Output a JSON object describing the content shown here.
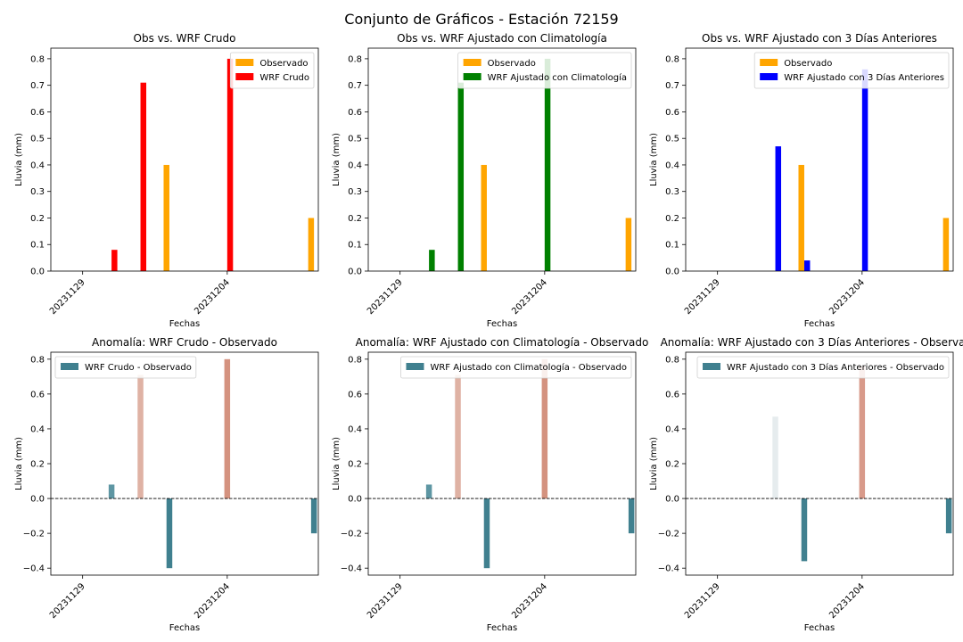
{
  "figure_title": "Conjunto de Gráficos - Estación 72159",
  "chart_data": [
    {
      "type": "bar",
      "title": "Obs vs. WRF Crudo",
      "xlabel": "Fechas",
      "ylabel": "Lluvia (mm)",
      "xticks": [
        "20231129",
        "20231204"
      ],
      "yticks": [
        "0.0",
        "0.1",
        "0.2",
        "0.3",
        "0.4",
        "0.5",
        "0.6",
        "0.7",
        "0.8"
      ],
      "ylim": [
        0,
        0.84
      ],
      "legend_position": "top-right",
      "dates": [
        "20231129",
        "20231130",
        "20231201",
        "20231202",
        "20231203",
        "20231204",
        "20231205",
        "20231206",
        "20231207"
      ],
      "series": [
        {
          "name": "Observado",
          "color": "#ffa500",
          "values": [
            0,
            0,
            0,
            0.4,
            0,
            0,
            0,
            0,
            0.2
          ]
        },
        {
          "name": "WRF Crudo",
          "color": "#ff0000",
          "values": [
            0,
            0.08,
            0.71,
            0,
            0,
            0.8,
            0,
            0,
            0
          ]
        }
      ]
    },
    {
      "type": "bar",
      "title": "Obs vs. WRF Ajustado con Climatología",
      "xlabel": "Fechas",
      "ylabel": "Lluvia (mm)",
      "xticks": [
        "20231129",
        "20231204"
      ],
      "yticks": [
        "0.0",
        "0.1",
        "0.2",
        "0.3",
        "0.4",
        "0.5",
        "0.6",
        "0.7",
        "0.8"
      ],
      "ylim": [
        0,
        0.84
      ],
      "legend_position": "top-right",
      "dates": [
        "20231129",
        "20231130",
        "20231201",
        "20231202",
        "20231203",
        "20231204",
        "20231205",
        "20231206",
        "20231207"
      ],
      "series": [
        {
          "name": "Observado",
          "color": "#ffa500",
          "values": [
            0,
            0,
            0,
            0.4,
            0,
            0,
            0,
            0,
            0.2
          ]
        },
        {
          "name": "WRF Ajustado con Climatología",
          "color": "#008000",
          "values": [
            0,
            0.08,
            0.71,
            0,
            0,
            0.8,
            0,
            0,
            0
          ]
        }
      ]
    },
    {
      "type": "bar",
      "title": "Obs vs. WRF Ajustado con 3 Días Anteriores",
      "xlabel": "Fechas",
      "ylabel": "Lluvia (mm)",
      "xticks": [
        "20231129",
        "20231204"
      ],
      "yticks": [
        "0.0",
        "0.1",
        "0.2",
        "0.3",
        "0.4",
        "0.5",
        "0.6",
        "0.7",
        "0.8"
      ],
      "ylim": [
        0,
        0.84
      ],
      "legend_position": "top-right",
      "dates": [
        "20231129",
        "20231130",
        "20231201",
        "20231202",
        "20231203",
        "20231204",
        "20231205",
        "20231206",
        "20231207"
      ],
      "series": [
        {
          "name": "Observado",
          "color": "#ffa500",
          "values": [
            0,
            0,
            0,
            0.4,
            0,
            0,
            0,
            0,
            0.2
          ]
        },
        {
          "name": "WRF Ajustado con 3 Días Anteriores",
          "color": "#0000ff",
          "values": [
            0,
            0,
            0.47,
            0.04,
            0,
            0.76,
            0,
            0,
            0
          ]
        }
      ]
    },
    {
      "type": "bar",
      "title": "Anomalía: WRF Crudo - Observado",
      "xlabel": "Fechas",
      "ylabel": "Lluvia (mm)",
      "xticks": [
        "20231129",
        "20231204"
      ],
      "yticks": [
        "−0.4",
        "−0.2",
        "0.0",
        "0.2",
        "0.4",
        "0.6",
        "0.8"
      ],
      "ylim": [
        -0.44,
        0.84
      ],
      "zero_line": true,
      "legend_position": "top-left",
      "dates": [
        "20231129",
        "20231130",
        "20231201",
        "20231202",
        "20231203",
        "20231204",
        "20231205",
        "20231206",
        "20231207"
      ],
      "series": [
        {
          "name": "WRF Crudo - Observado",
          "color": "#40808f",
          "values": [
            0,
            0.08,
            0.71,
            -0.4,
            0,
            0.8,
            0,
            0,
            -0.2
          ],
          "bar_colors": [
            "#40808f",
            "#5e96a3",
            "#dfb2a4",
            "#40808f",
            "#40808f",
            "#d4927f",
            "#40808f",
            "#40808f",
            "#40808f"
          ]
        }
      ]
    },
    {
      "type": "bar",
      "title": "Anomalía: WRF Ajustado con Climatología - Observado",
      "xlabel": "Fechas",
      "ylabel": "Lluvia (mm)",
      "xticks": [
        "20231129",
        "20231204"
      ],
      "yticks": [
        "−0.4",
        "−0.2",
        "0.0",
        "0.2",
        "0.4",
        "0.6",
        "0.8"
      ],
      "ylim": [
        -0.44,
        0.84
      ],
      "zero_line": true,
      "legend_position": "top-right",
      "dates": [
        "20231129",
        "20231130",
        "20231201",
        "20231202",
        "20231203",
        "20231204",
        "20231205",
        "20231206",
        "20231207"
      ],
      "series": [
        {
          "name": "WRF Ajustado con Climatología - Observado",
          "color": "#40808f",
          "values": [
            0,
            0.08,
            0.71,
            -0.4,
            0,
            0.8,
            0,
            0,
            -0.2
          ],
          "bar_colors": [
            "#40808f",
            "#5e96a3",
            "#dfb2a4",
            "#40808f",
            "#40808f",
            "#d4927f",
            "#40808f",
            "#40808f",
            "#40808f"
          ]
        }
      ]
    },
    {
      "type": "bar",
      "title": "Anomalía: WRF Ajustado con 3 Días Anteriores - Observado",
      "xlabel": "Fechas",
      "ylabel": "Lluvia (mm)",
      "xticks": [
        "20231129",
        "20231204"
      ],
      "yticks": [
        "−0.4",
        "−0.2",
        "0.0",
        "0.2",
        "0.4",
        "0.6",
        "0.8"
      ],
      "ylim": [
        -0.44,
        0.84
      ],
      "zero_line": true,
      "legend_position": "top-right",
      "dates": [
        "20231129",
        "20231130",
        "20231201",
        "20231202",
        "20231203",
        "20231204",
        "20231205",
        "20231206",
        "20231207"
      ],
      "series": [
        {
          "name": "WRF Ajustado con 3 Días Anteriores - Observado",
          "color": "#40808f",
          "values": [
            0,
            0,
            0.47,
            -0.36,
            0,
            0.76,
            0,
            0,
            -0.2
          ],
          "bar_colors": [
            "#40808f",
            "#40808f",
            "#e6ecee",
            "#40808f",
            "#40808f",
            "#d89a8a",
            "#40808f",
            "#40808f",
            "#40808f"
          ]
        }
      ]
    }
  ]
}
